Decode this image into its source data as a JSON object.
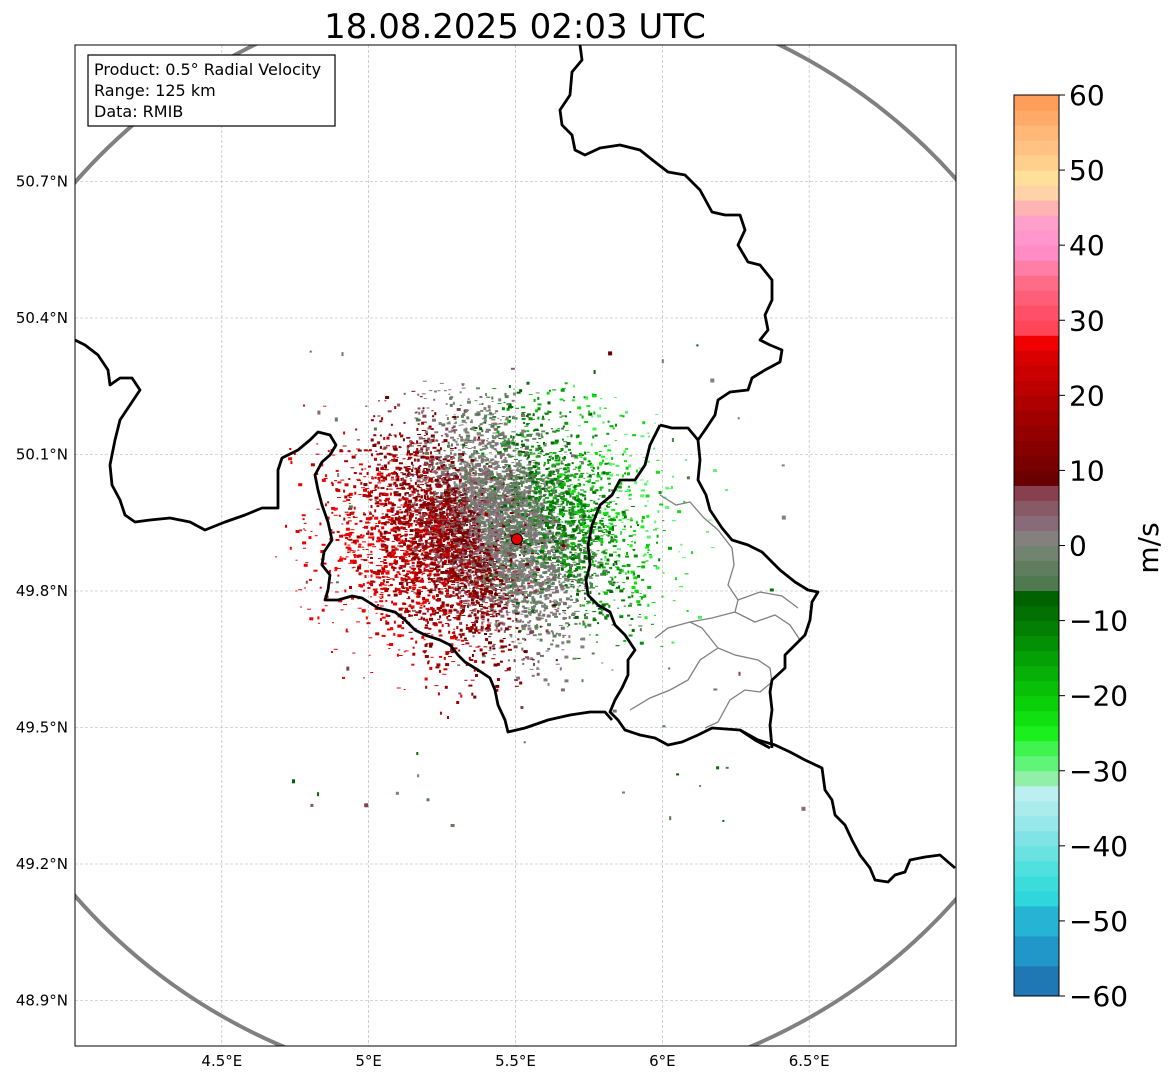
{
  "title": "18.08.2025 02:03 UTC",
  "info_box": {
    "product": "Product: 0.5° Radial Velocity",
    "range": "Range: 125 km",
    "data": "Data: RMIB"
  },
  "map": {
    "lon_range": [
      4.0,
      7.0
    ],
    "lat_range": [
      48.8,
      51.0
    ],
    "lon_ticks": [
      {
        "value": 4.5,
        "label": "4.5°E"
      },
      {
        "value": 5.0,
        "label": "5°E"
      },
      {
        "value": 5.5,
        "label": "5.5°E"
      },
      {
        "value": 6.0,
        "label": "6°E"
      },
      {
        "value": 6.5,
        "label": "6.5°E"
      }
    ],
    "lat_ticks": [
      {
        "value": 48.9,
        "label": "48.9°N"
      },
      {
        "value": 49.2,
        "label": "49.2°N"
      },
      {
        "value": 49.5,
        "label": "49.5°N"
      },
      {
        "value": 49.8,
        "label": "49.8°N"
      },
      {
        "value": 50.1,
        "label": "50.1°N"
      },
      {
        "value": 50.4,
        "label": "50.4°N"
      },
      {
        "value": 50.7,
        "label": "50.7°N"
      }
    ],
    "grid": true,
    "radar_site": {
      "lon": 5.505,
      "lat": 49.914,
      "color": "#e00000"
    },
    "range_ring_color": "#808080",
    "border_color": "#000000",
    "subdivision_color": "#808080"
  },
  "colorbar": {
    "label": "m/s",
    "min": -60,
    "max": 60,
    "ticks": [
      {
        "value": 60,
        "label": "60"
      },
      {
        "value": 50,
        "label": "50"
      },
      {
        "value": 40,
        "label": "40"
      },
      {
        "value": 30,
        "label": "30"
      },
      {
        "value": 20,
        "label": "20"
      },
      {
        "value": 10,
        "label": "10"
      },
      {
        "value": 0,
        "label": "0"
      },
      {
        "value": -10,
        "label": "−10"
      },
      {
        "value": -20,
        "label": "−20"
      },
      {
        "value": -30,
        "label": "−30"
      },
      {
        "value": -40,
        "label": "−40"
      },
      {
        "value": -50,
        "label": "−50"
      },
      {
        "value": -60,
        "label": "−60"
      }
    ],
    "bands": [
      {
        "from": -60,
        "to": -56,
        "color": "#1f77b4"
      },
      {
        "from": -56,
        "to": -52,
        "color": "#2196c8"
      },
      {
        "from": -52,
        "to": -48,
        "color": "#25b4d4"
      },
      {
        "from": -48,
        "to": -46,
        "color": "#2fd6dc"
      },
      {
        "from": -46,
        "to": -44,
        "color": "#3cdcdc"
      },
      {
        "from": -44,
        "to": -42,
        "color": "#50e0e0"
      },
      {
        "from": -42,
        "to": -40,
        "color": "#6ae2e2"
      },
      {
        "from": -40,
        "to": -38,
        "color": "#80e4e6"
      },
      {
        "from": -38,
        "to": -36,
        "color": "#96e8ea"
      },
      {
        "from": -36,
        "to": -34,
        "color": "#aaeced"
      },
      {
        "from": -34,
        "to": -32,
        "color": "#bcf0f0"
      },
      {
        "from": -32,
        "to": -30,
        "color": "#90f0a8"
      },
      {
        "from": -30,
        "to": -28,
        "color": "#60f478"
      },
      {
        "from": -28,
        "to": -26,
        "color": "#40f450"
      },
      {
        "from": -26,
        "to": -24,
        "color": "#1cf01c"
      },
      {
        "from": -24,
        "to": -22,
        "color": "#10e010"
      },
      {
        "from": -22,
        "to": -20,
        "color": "#0ad00a"
      },
      {
        "from": -20,
        "to": -18,
        "color": "#08c008"
      },
      {
        "from": -18,
        "to": -16,
        "color": "#06b006"
      },
      {
        "from": -16,
        "to": -14,
        "color": "#05a005"
      },
      {
        "from": -14,
        "to": -12,
        "color": "#049004"
      },
      {
        "from": -12,
        "to": -10,
        "color": "#038003"
      },
      {
        "from": -10,
        "to": -8,
        "color": "#027002"
      },
      {
        "from": -8,
        "to": -6,
        "color": "#006200"
      },
      {
        "from": -6,
        "to": -4,
        "color": "#4f7a4f"
      },
      {
        "from": -4,
        "to": -2,
        "color": "#5e7e5e"
      },
      {
        "from": -2,
        "to": 0,
        "color": "#708470"
      },
      {
        "from": 0,
        "to": 2,
        "color": "#848080"
      },
      {
        "from": 2,
        "to": 4,
        "color": "#886a78"
      },
      {
        "from": 4,
        "to": 6,
        "color": "#885a66"
      },
      {
        "from": 6,
        "to": 8,
        "color": "#884050"
      },
      {
        "from": 8,
        "to": 10,
        "color": "#6a0000"
      },
      {
        "from": 10,
        "to": 12,
        "color": "#780000"
      },
      {
        "from": 12,
        "to": 14,
        "color": "#860000"
      },
      {
        "from": 14,
        "to": 16,
        "color": "#940000"
      },
      {
        "from": 16,
        "to": 18,
        "color": "#a00000"
      },
      {
        "from": 18,
        "to": 20,
        "color": "#ae0000"
      },
      {
        "from": 20,
        "to": 22,
        "color": "#bc0000"
      },
      {
        "from": 22,
        "to": 24,
        "color": "#ca0000"
      },
      {
        "from": 24,
        "to": 26,
        "color": "#d80000"
      },
      {
        "from": 26,
        "to": 28,
        "color": "#f00000"
      },
      {
        "from": 28,
        "to": 30,
        "color": "#ff4658"
      },
      {
        "from": 30,
        "to": 32,
        "color": "#ff5068"
      },
      {
        "from": 32,
        "to": 34,
        "color": "#ff5e78"
      },
      {
        "from": 34,
        "to": 36,
        "color": "#ff6c88"
      },
      {
        "from": 36,
        "to": 38,
        "color": "#ff7ea8"
      },
      {
        "from": 38,
        "to": 40,
        "color": "#ff8cc4"
      },
      {
        "from": 40,
        "to": 42,
        "color": "#ff96cc"
      },
      {
        "from": 42,
        "to": 44,
        "color": "#ffa0cc"
      },
      {
        "from": 44,
        "to": 46,
        "color": "#ffb4b4"
      },
      {
        "from": 46,
        "to": 48,
        "color": "#ffd2a8"
      },
      {
        "from": 48,
        "to": 50,
        "color": "#ffe09a"
      },
      {
        "from": 50,
        "to": 52,
        "color": "#ffd08c"
      },
      {
        "from": 52,
        "to": 54,
        "color": "#ffc282"
      },
      {
        "from": 54,
        "to": 56,
        "color": "#ffb878"
      },
      {
        "from": 56,
        "to": 58,
        "color": "#ffaa68"
      },
      {
        "from": 58,
        "to": 60,
        "color": "#ff9e5a"
      }
    ]
  }
}
